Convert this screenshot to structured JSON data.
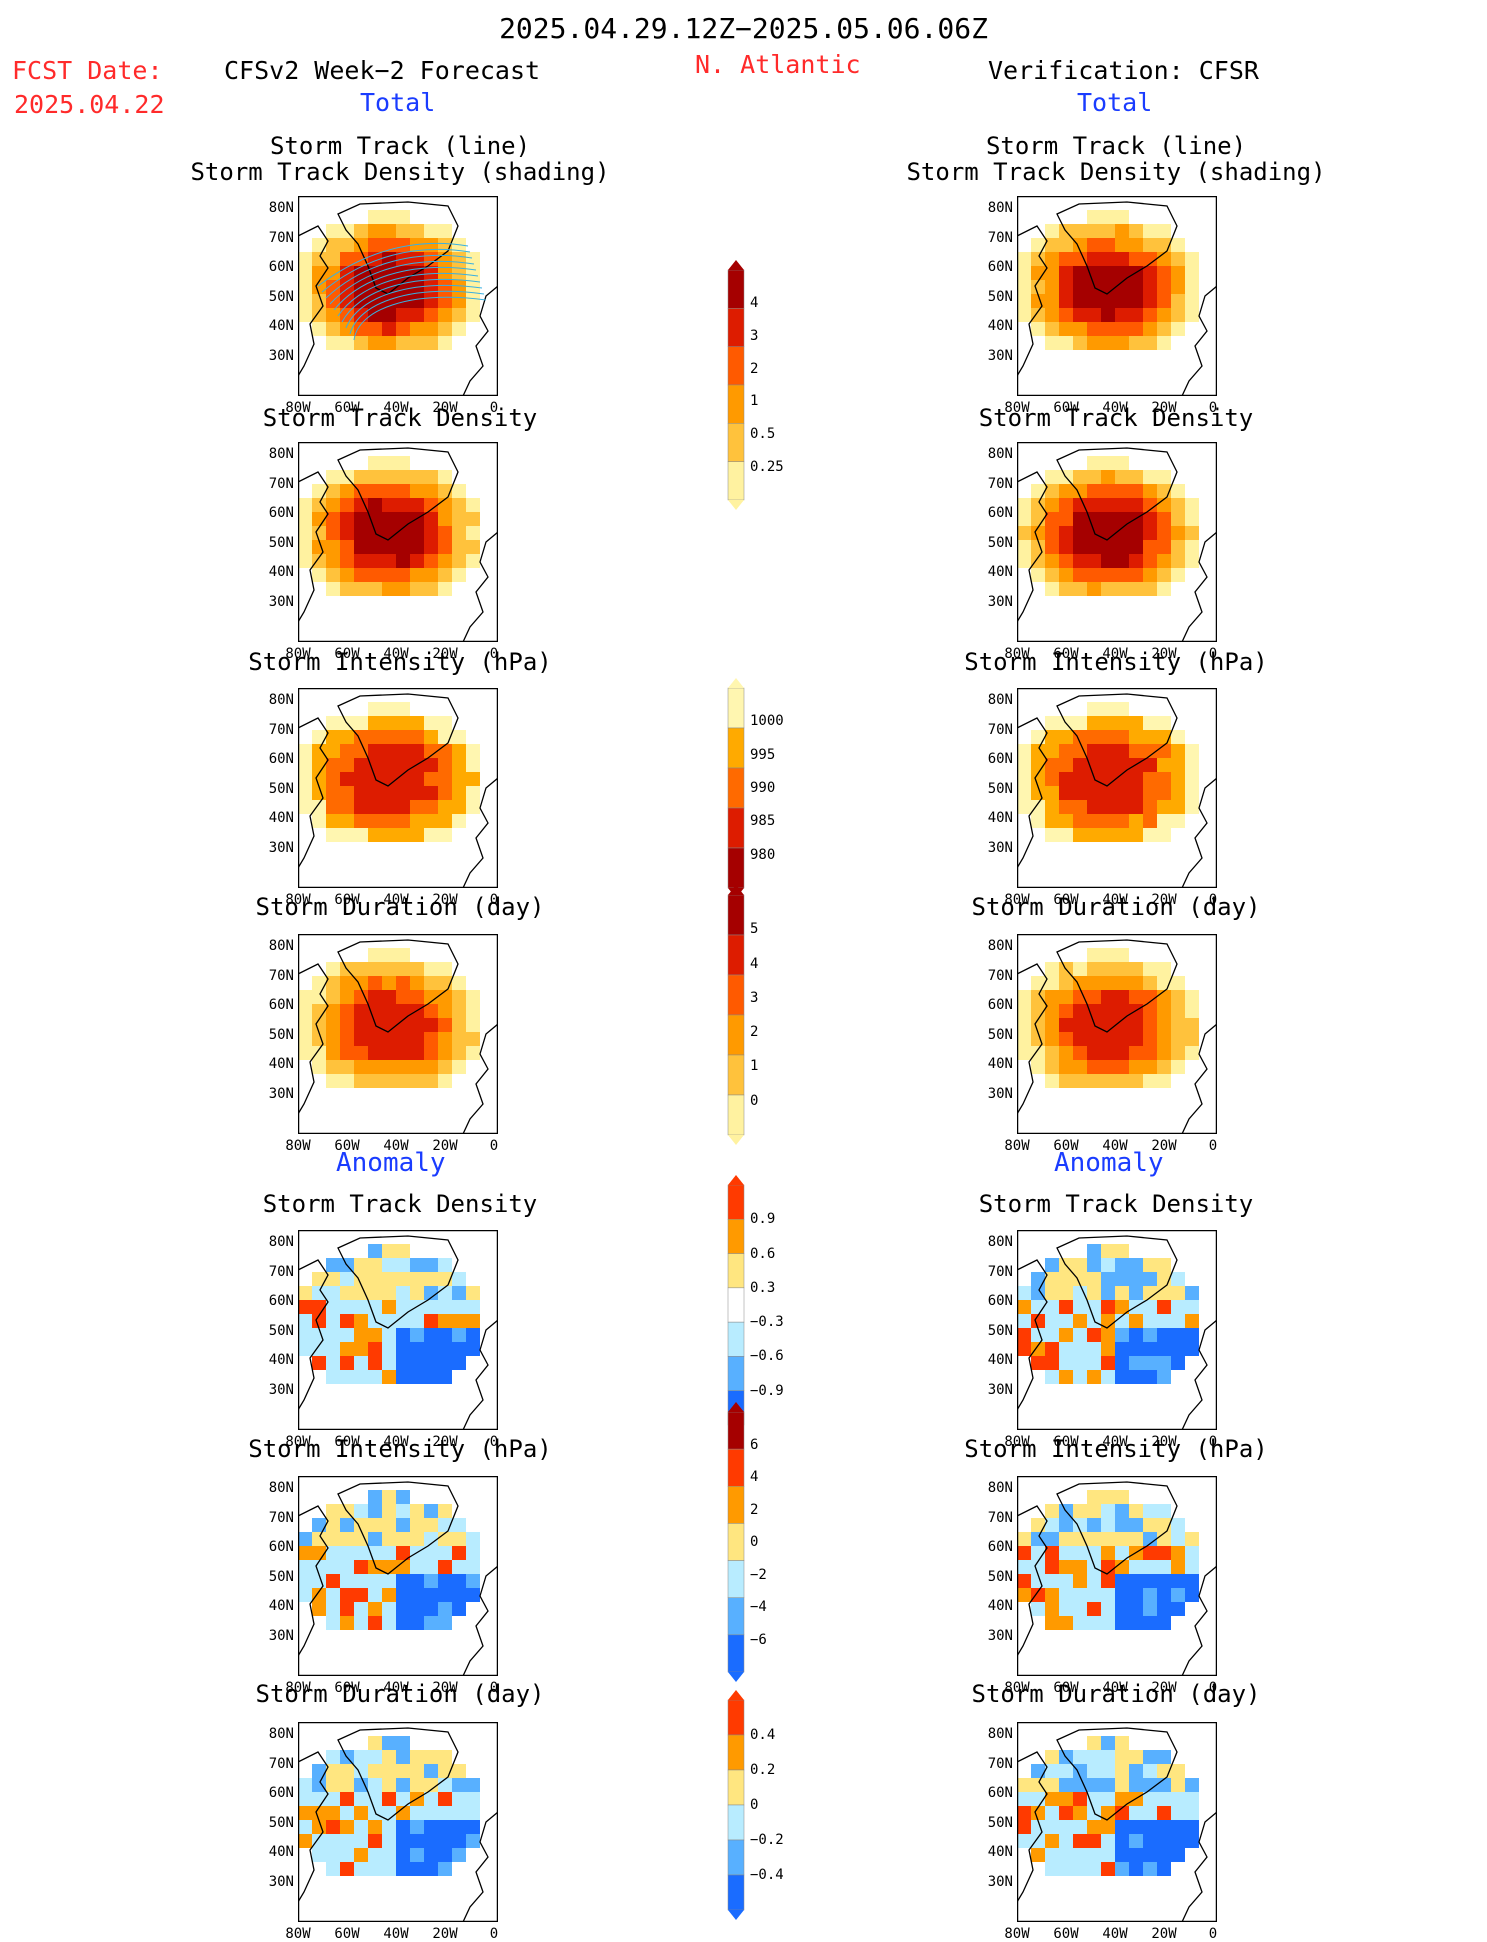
{
  "header": {
    "period": "2025.04.29.12Z−2025.05.06.06Z",
    "region": "N. Atlantic",
    "fcst_label": "FCST Date:",
    "fcst_date": "2025.04.22",
    "left_model": "CFSv2 Week−2 Forecast",
    "right_model": "Verification: CFSR",
    "total_label": "Total",
    "anomaly_label": "Anomaly"
  },
  "titles": {
    "track_line": "Storm Track (line)",
    "track_density_shading": "Storm Track Density (shading)",
    "track_density": "Storm Track Density",
    "intensity": "Storm Intensity (hPa)",
    "duration": "Storm Duration (day)"
  },
  "axes": {
    "lat_ticks": [
      "80N",
      "70N",
      "60N",
      "50N",
      "40N",
      "30N"
    ],
    "lon_ticks": [
      "80W",
      "60W",
      "40W",
      "20W",
      "0"
    ]
  },
  "colorbars": {
    "density": {
      "labels": [
        "4",
        "3",
        "2",
        "1",
        "0.5",
        "0.25"
      ],
      "colors": [
        "#a50000",
        "#dd1c00",
        "#ff5a00",
        "#ff9a00",
        "#ffc23c",
        "#fff2a0"
      ]
    },
    "intensity": {
      "labels": [
        "1000",
        "995",
        "990",
        "985",
        "980"
      ],
      "colors": [
        "#fff6b0",
        "#ffaa00",
        "#ff6a00",
        "#dd1c00",
        "#a50000"
      ]
    },
    "duration": {
      "labels": [
        "5",
        "4",
        "3",
        "2",
        "1",
        "0"
      ],
      "colors": [
        "#a50000",
        "#dd1c00",
        "#ff5a00",
        "#ff9a00",
        "#ffc23c",
        "#fff2a0"
      ]
    },
    "anom_density": {
      "labels": [
        "0.9",
        "0.6",
        "0.3",
        "−0.3",
        "−0.6",
        "−0.9"
      ],
      "colors": [
        "#ff3a00",
        "#ff9a00",
        "#ffe680",
        "#ffffff",
        "#b8ecff",
        "#58b0ff",
        "#1a6cff"
      ]
    },
    "anom_intensity": {
      "labels": [
        "6",
        "4",
        "2",
        "0",
        "−2",
        "−4",
        "−6"
      ],
      "colors": [
        "#a50000",
        "#ff3a00",
        "#ff9a00",
        "#ffe680",
        "#b8ecff",
        "#58b0ff",
        "#1a6cff"
      ]
    },
    "anom_duration": {
      "labels": [
        "0.4",
        "0.2",
        "0",
        "−0.2",
        "−0.4"
      ],
      "colors": [
        "#ff3a00",
        "#ff9a00",
        "#ffe680",
        "#b8ecff",
        "#58b0ff",
        "#1a6cff"
      ]
    }
  },
  "panels": {
    "fc_track": {
      "theme": "density",
      "level": "high"
    },
    "fc_density": {
      "theme": "density",
      "level": "high"
    },
    "fc_intensity": {
      "theme": "intensity",
      "level": "mid"
    },
    "fc_duration": {
      "theme": "duration",
      "level": "mid"
    },
    "fc_anom_density": {
      "theme": "anom",
      "level": "mixed"
    },
    "fc_anom_intensity": {
      "theme": "anom",
      "level": "mixed"
    },
    "fc_anom_duration": {
      "theme": "anom",
      "level": "mixed"
    },
    "vf_track": {
      "theme": "density",
      "level": "high"
    },
    "vf_density": {
      "theme": "density",
      "level": "high"
    },
    "vf_intensity": {
      "theme": "intensity",
      "level": "low"
    },
    "vf_duration": {
      "theme": "duration",
      "level": "high"
    },
    "vf_anom_density": {
      "theme": "anom",
      "level": "mixed"
    },
    "vf_anom_intensity": {
      "theme": "anom",
      "level": "mixed"
    },
    "vf_anom_duration": {
      "theme": "anom",
      "level": "mixed"
    }
  }
}
